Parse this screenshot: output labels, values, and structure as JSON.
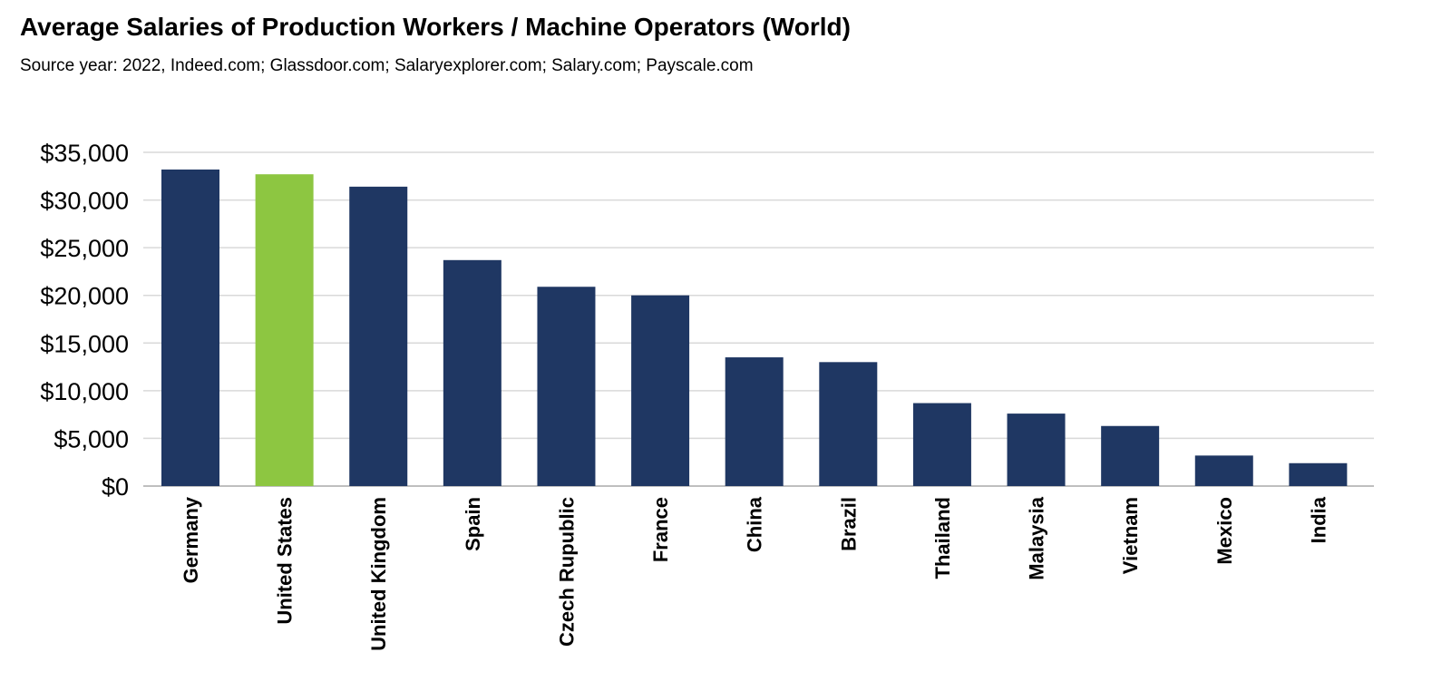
{
  "header": {
    "title": "Average Salaries of Production Workers / Machine Operators (World)",
    "subtitle": "Source year: 2022, Indeed.com; Glassdoor.com; Salaryexplorer.com; Salary.com; Payscale.com"
  },
  "chart_data": {
    "type": "bar",
    "title": "Average Salaries of Production Workers / Machine Operators (World)",
    "subtitle": "Source year: 2022, Indeed.com; Glassdoor.com; Salaryexplorer.com; Salary.com; Payscale.com",
    "xlabel": "",
    "ylabel": "",
    "ylim": [
      0,
      35000
    ],
    "yticks": [
      0,
      5000,
      10000,
      15000,
      20000,
      25000,
      30000,
      35000
    ],
    "ytick_labels": [
      "$0",
      "$5,000",
      "$10,000",
      "$15,000",
      "$20,000",
      "$25,000",
      "$30,000",
      "$35,000"
    ],
    "grid": true,
    "legend": "none",
    "categories": [
      "Germany",
      "United States",
      "United Kingdom",
      "Spain",
      "Czech Rupublic",
      "France",
      "China",
      "Brazil",
      "Thailand",
      "Malaysia",
      "Vietnam",
      "Mexico",
      "India"
    ],
    "values": [
      33200,
      32700,
      31400,
      23700,
      20900,
      20000,
      13500,
      13000,
      8700,
      7600,
      6300,
      3200,
      2400
    ],
    "highlight_category": "United States",
    "colors": {
      "bar": "#1f3763",
      "highlight": "#8dc641",
      "grid": "#d9d9d9",
      "axis": "#bfbfbf",
      "text": "#000000"
    }
  }
}
